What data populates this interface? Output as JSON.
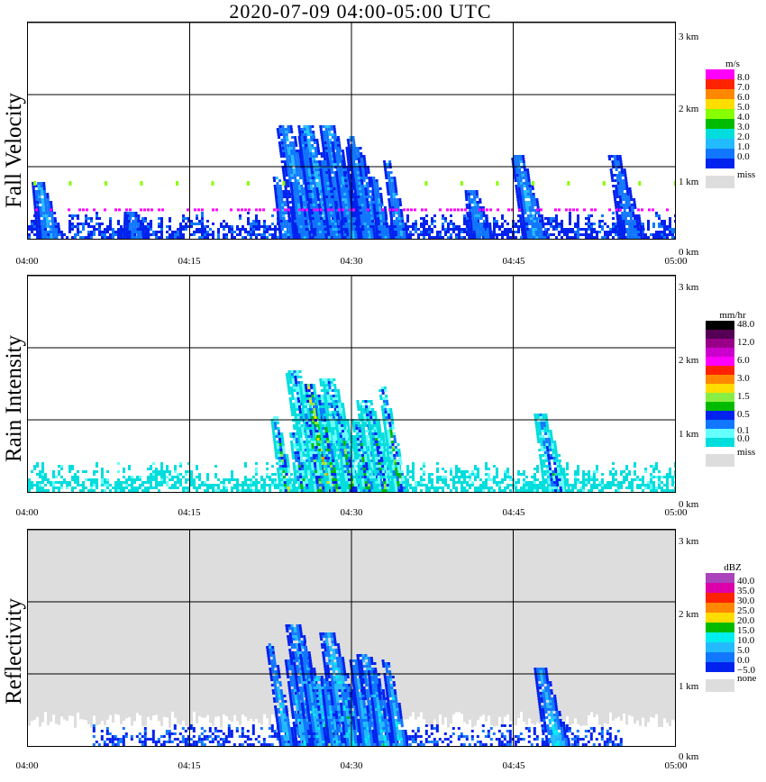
{
  "title": "2020-07-09   04:00-05:00 UTC",
  "x_ticks": [
    "04:00",
    "04:15",
    "04:30",
    "04:45",
    "05:00"
  ],
  "y_ticks": [
    "0 km",
    "1 km",
    "2 km",
    "3 km"
  ],
  "colors": {
    "velocity": [
      "#0022ee",
      "#1177ff",
      "#22bbff",
      "#00dddd",
      "#00bb00",
      "#88ff00",
      "#ffdd00",
      "#ff8800",
      "#ff2200",
      "#ff00ff"
    ],
    "intensity": [
      "#00dddd",
      "#66ffff",
      "#1177ff",
      "#0022ee",
      "#00bb00",
      "#88ee44",
      "#ffdd00",
      "#ff8800",
      "#ff2200",
      "#ff00ff",
      "#cc00cc",
      "#990088",
      "#550055",
      "#000000"
    ],
    "reflectivity": [
      "#0022ee",
      "#1177ff",
      "#22bbff",
      "#00eeee",
      "#00bb00",
      "#ffdd00",
      "#ff8800",
      "#ff2200",
      "#dd00aa",
      "#aa44bb"
    ]
  },
  "panels": [
    {
      "ylabel": "Fall Velocity",
      "unit": "m/s",
      "labels": [
        "8.0",
        "7.0",
        "6.0",
        "5.0",
        "4.0",
        "3.0",
        "2.0",
        "1.0",
        "0.0"
      ],
      "extra": "miss"
    },
    {
      "ylabel": "Rain Intensity",
      "unit": "mm/hr",
      "labels": [
        "48.0",
        "12.0",
        "6.0",
        "3.0",
        "1.5",
        "0.5",
        "0.1",
        "0.0"
      ],
      "extra": "miss"
    },
    {
      "ylabel": "Reflectivity",
      "unit": "dBZ",
      "labels": [
        "40.0",
        "35.0",
        "30.0",
        "25.0",
        "20.0",
        "15.0",
        "10.0",
        "5.0",
        "0.0",
        "−5.0"
      ],
      "extra": "none"
    }
  ],
  "chart_data": [
    {
      "type": "heatmap",
      "title": "2020-07-09   04:00-05:00 UTC",
      "ylabel": "Fall Velocity",
      "x_range": [
        "04:00",
        "05:00"
      ],
      "y_range_km": [
        0,
        3
      ],
      "unit": "m/s",
      "legend": [
        "8.0",
        "7.0",
        "6.0",
        "5.0",
        "4.0",
        "3.0",
        "2.0",
        "1.0",
        "0.0",
        "miss"
      ],
      "cells": [
        {
          "t_min": 2,
          "top_km": 0.8,
          "v": 1.5
        },
        {
          "t_min": 10,
          "top_km": 0.4,
          "v": 0.5
        },
        {
          "t_min": 26,
          "top_km": 1.6,
          "v": 1.5
        },
        {
          "t_min": 28,
          "top_km": 1.6,
          "v": 1.8
        },
        {
          "t_min": 30,
          "top_km": 1.6,
          "v": 1.5
        },
        {
          "t_min": 32,
          "top_km": 1.3,
          "v": 1.2
        },
        {
          "t_min": 42,
          "top_km": 0.7,
          "v": 1.0
        },
        {
          "t_min": 47,
          "top_km": 1.2,
          "v": 1.6
        },
        {
          "t_min": 56,
          "top_km": 1.2,
          "v": 0.5
        }
      ]
    },
    {
      "type": "heatmap",
      "ylabel": "Rain Intensity",
      "x_range": [
        "04:00",
        "05:00"
      ],
      "y_range_km": [
        0,
        3
      ],
      "unit": "mm/hr",
      "legend": [
        "48.0",
        "12.0",
        "6.0",
        "3.0",
        "1.5",
        "0.5",
        "0.1",
        "0.0",
        "miss"
      ],
      "cells": [
        {
          "t_min": 27,
          "top_km": 1.7,
          "v": 0.5
        },
        {
          "t_min": 28,
          "top_km": 1.5,
          "v": 1.5
        },
        {
          "t_min": 30,
          "top_km": 1.6,
          "v": 0.5
        },
        {
          "t_min": 33,
          "top_km": 1.3,
          "v": 0.5
        },
        {
          "t_min": 49,
          "top_km": 1.1,
          "v": 0.5
        }
      ]
    },
    {
      "type": "heatmap",
      "ylabel": "Reflectivity",
      "x_range": [
        "04:00",
        "05:00"
      ],
      "y_range_km": [
        0,
        3
      ],
      "unit": "dBZ",
      "legend": [
        "40.0",
        "35.0",
        "30.0",
        "25.0",
        "20.0",
        "15.0",
        "10.0",
        "5.0",
        "0.0",
        "−5.0",
        "none"
      ],
      "cells": [
        {
          "t_min": 27,
          "top_km": 1.7,
          "v": 10
        },
        {
          "t_min": 28,
          "top_km": 1.0,
          "v": 15
        },
        {
          "t_min": 30,
          "top_km": 1.6,
          "v": 12
        },
        {
          "t_min": 33,
          "top_km": 1.3,
          "v": 10
        },
        {
          "t_min": 49,
          "top_km": 1.1,
          "v": 8
        }
      ]
    }
  ]
}
